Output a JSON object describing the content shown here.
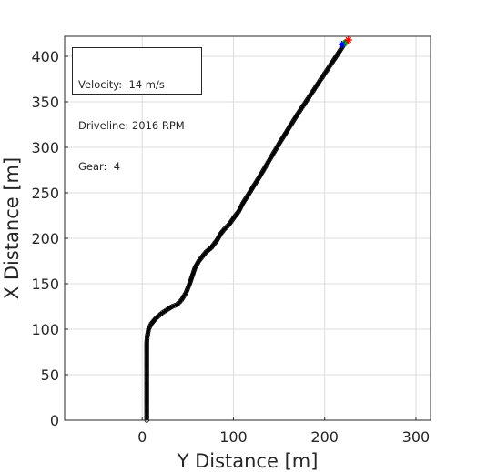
{
  "info": {
    "velocity": "Velocity:  14 m/s",
    "driveline": "Driveline: 2016 RPM",
    "gear": "Gear:  4"
  },
  "chart_data": {
    "type": "line",
    "title": "",
    "xlabel": "Y Distance [m]",
    "ylabel": "X Distance [m]",
    "xlim": [
      -85,
      316
    ],
    "ylim": [
      0,
      422
    ],
    "xticks": [
      0,
      100,
      200,
      300
    ],
    "yticks": [
      0,
      50,
      100,
      150,
      200,
      250,
      300,
      350,
      400
    ],
    "xtick_labels": [
      "0",
      "100",
      "200",
      "300"
    ],
    "ytick_labels": [
      "0",
      "50",
      "100",
      "150",
      "200",
      "250",
      "300",
      "350",
      "400"
    ],
    "grid": true,
    "series": [
      {
        "color": "#000000",
        "marker": "circle-open",
        "x": [
          5,
          5,
          5,
          5,
          5,
          5,
          5.5,
          7,
          10,
          15,
          22,
          28,
          33,
          38,
          43,
          48,
          52,
          56,
          58,
          62,
          66,
          70,
          76,
          82,
          86,
          90,
          95,
          100,
          106,
          110,
          120,
          130,
          140,
          150,
          160,
          170,
          180,
          190,
          200,
          210,
          218,
          224
        ],
        "y": [
          0,
          20,
          40,
          60,
          75,
          85,
          92,
          100,
          106,
          112,
          118,
          122,
          125,
          127,
          132,
          140,
          150,
          162,
          168,
          175,
          180,
          185,
          190,
          198,
          205,
          210,
          215,
          222,
          230,
          238,
          254,
          270,
          287,
          304,
          320,
          336,
          351,
          366,
          381,
          396,
          408,
          418
        ]
      }
    ],
    "end_markers": [
      {
        "color": "#ff0000",
        "x": 226,
        "y": 418
      },
      {
        "color": "#00cc00",
        "x": 221,
        "y": 414
      },
      {
        "color": "#0000ff",
        "x": 219,
        "y": 413
      }
    ]
  }
}
